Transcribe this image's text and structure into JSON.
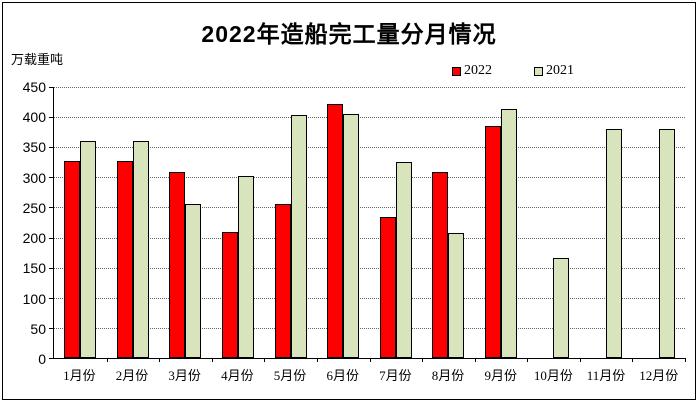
{
  "chart": {
    "title": "2022年造船完工量分月情况",
    "unit_label": "万载重吨"
  },
  "chart_data": {
    "type": "bar",
    "title": "2022年造船完工量分月情况",
    "xlabel": "",
    "ylabel": "万载重吨",
    "categories": [
      "1月份",
      "2月份",
      "3月份",
      "4月份",
      "5月份",
      "6月份",
      "7月份",
      "8月份",
      "9月份",
      "10月份",
      "11月份",
      "12月份"
    ],
    "series": [
      {
        "name": "2022",
        "color": "#FF0000",
        "values": [
          327,
          327,
          309,
          210,
          256,
          422,
          234,
          309,
          386,
          null,
          null,
          null
        ]
      },
      {
        "name": "2021",
        "color": "#D8E4BC",
        "values": [
          361,
          361,
          255,
          302,
          404,
          405,
          326,
          208,
          414,
          166,
          381,
          381
        ]
      }
    ],
    "ylim": [
      0,
      450
    ],
    "ytick_step": 50,
    "grid": true,
    "gridline_style": "dotted",
    "legend_position": "top-right",
    "colors": {
      "axis": "#000000",
      "gridline": "#666666",
      "background": "#ffffff",
      "bar_border": "#000000"
    }
  }
}
